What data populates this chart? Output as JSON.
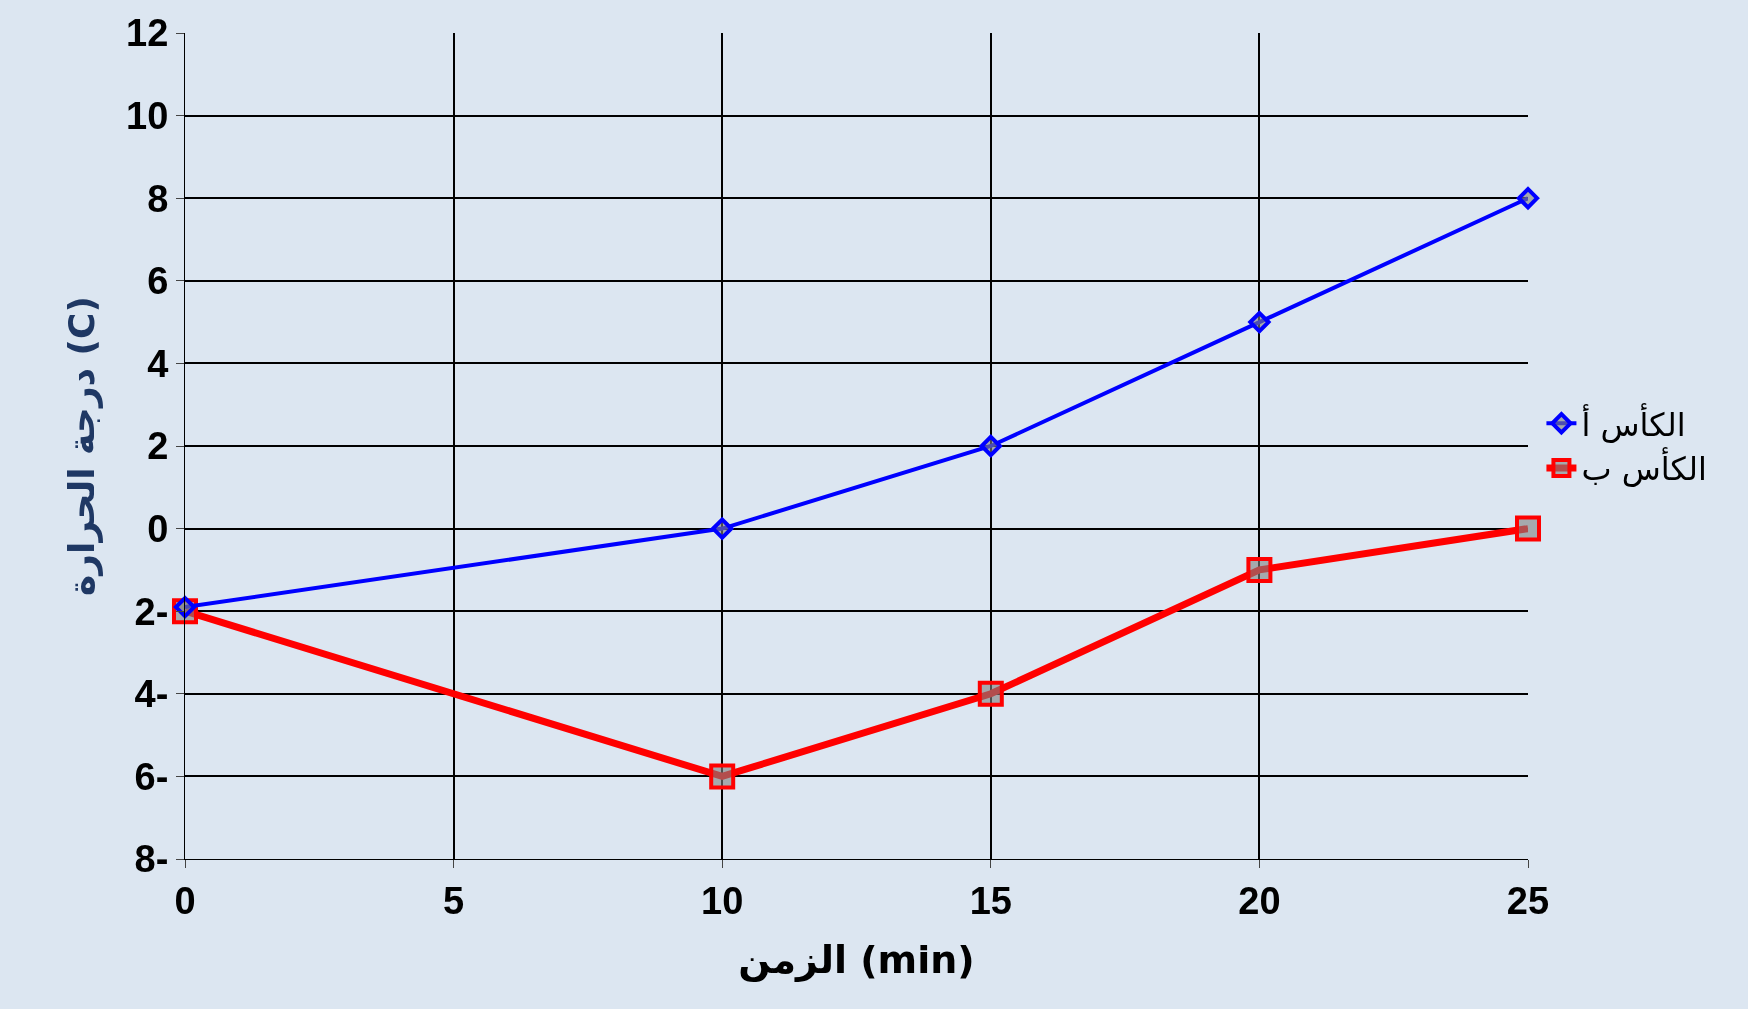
{
  "chart_data": {
    "type": "line",
    "xlabel": "الزمن (min)",
    "ylabel": "درجة الحرارة (C)",
    "x": [
      0,
      10,
      15,
      20,
      25
    ],
    "series": [
      {
        "name": "الكأس أ",
        "color": "#0000ff",
        "marker": "diamond",
        "values": [
          -1.9,
          0,
          2,
          5,
          8
        ]
      },
      {
        "name": "الكأس ب",
        "color": "#ff0000",
        "marker": "square",
        "values": [
          -2,
          -6,
          -4,
          -1,
          0
        ]
      }
    ],
    "xlim": [
      0,
      25
    ],
    "xticks": [
      0,
      5,
      10,
      15,
      20,
      25
    ],
    "ylim": [
      -8,
      12
    ],
    "yticks": [
      {
        "value": -8,
        "label": "8-"
      },
      {
        "value": -6,
        "label": "6-"
      },
      {
        "value": -4,
        "label": "4-"
      },
      {
        "value": -2,
        "label": "2-"
      },
      0,
      2,
      4,
      6,
      8,
      10,
      12
    ],
    "grid": true,
    "legend": "right",
    "line_style": "solid"
  }
}
